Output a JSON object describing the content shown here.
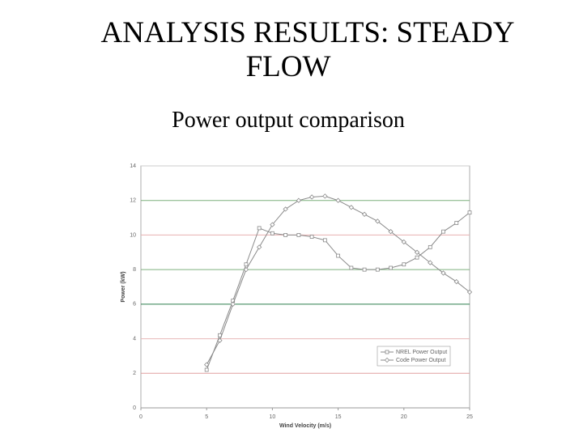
{
  "chart_data": {
    "type": "line",
    "title": "ANALYSIS RESULTS: STEADY FLOW",
    "subtitle": "Power output comparison",
    "x_label": "Wind Velocity (m/s)",
    "y_label": "Power (kW)",
    "x": [
      5,
      6,
      7,
      8,
      9,
      10,
      11,
      12,
      13,
      14,
      15,
      16,
      17,
      18,
      19,
      20,
      21,
      22,
      23,
      24,
      25
    ],
    "series": [
      {
        "name": "NREL Power Output",
        "color": "#8a8a8a",
        "marker": "square",
        "values": [
          2.2,
          4.2,
          6.2,
          8.3,
          10.4,
          10.1,
          10.0,
          10.0,
          9.9,
          9.7,
          8.8,
          8.1,
          8.0,
          8.0,
          8.1,
          8.3,
          8.7,
          9.3,
          10.2,
          10.7,
          11.3
        ]
      },
      {
        "name": "Code Power Output",
        "color": "#8a8a8a",
        "marker": "diamond",
        "values": [
          2.5,
          3.9,
          6.0,
          8.0,
          9.3,
          10.6,
          11.5,
          12.0,
          12.2,
          12.25,
          12.0,
          11.6,
          11.2,
          10.8,
          10.2,
          9.6,
          9.0,
          8.4,
          7.8,
          7.3,
          6.7
        ]
      }
    ],
    "xlim": [
      0,
      25
    ],
    "xticks": [
      0,
      5,
      10,
      15,
      20,
      25
    ],
    "ylim": [
      0,
      14
    ],
    "yticks": [
      0,
      2,
      4,
      6,
      8,
      10,
      12,
      14
    ],
    "grid": true,
    "grid_colors": [
      "#999999",
      "#e0a0a0",
      "#e8b8b8",
      "#2f7f4f",
      "#7fb07f",
      "#e8b0b0",
      "#7fb07f",
      "#cccccc"
    ],
    "legend": "lower right"
  }
}
